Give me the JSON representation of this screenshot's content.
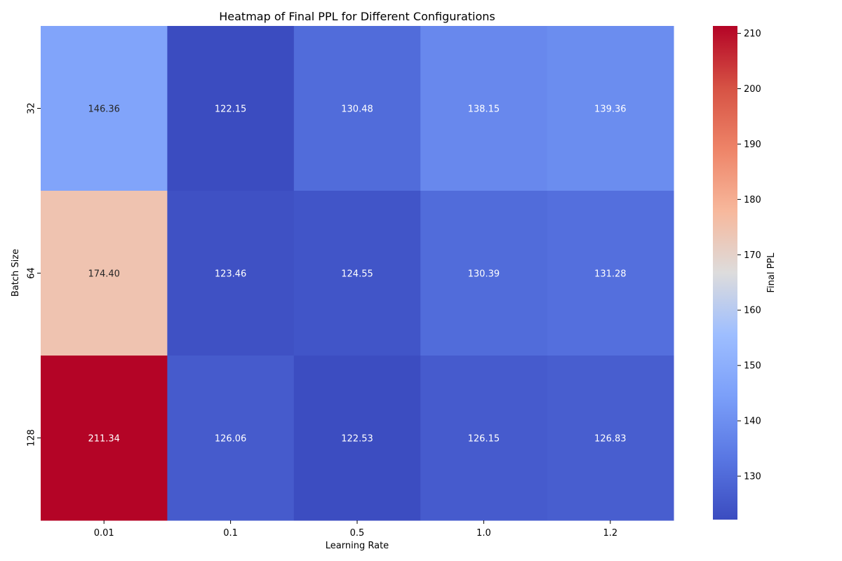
{
  "chart_data": {
    "type": "heatmap",
    "title": "Heatmap of Final PPL for Different Configurations",
    "xlabel": "Learning Rate",
    "ylabel": "Batch Size",
    "x_categories": [
      "0.01",
      "0.1",
      "0.5",
      "1.0",
      "1.2"
    ],
    "y_categories": [
      "32",
      "64",
      "128"
    ],
    "values": [
      [
        146.36,
        122.15,
        130.48,
        138.15,
        139.36
      ],
      [
        174.4,
        123.46,
        124.55,
        130.39,
        131.28
      ],
      [
        211.34,
        126.06,
        122.53,
        126.15,
        126.83
      ]
    ],
    "cell_labels": [
      [
        "146.36",
        "122.15",
        "130.48",
        "138.15",
        "139.36"
      ],
      [
        "174.40",
        "123.46",
        "124.55",
        "130.39",
        "131.28"
      ],
      [
        "211.34",
        "126.06",
        "122.53",
        "126.15",
        "126.83"
      ]
    ],
    "colormap": "coolwarm",
    "colorbar": {
      "label": "Final PPL",
      "range": [
        122.15,
        211.34
      ],
      "ticks": [
        "130",
        "140",
        "150",
        "160",
        "170",
        "180",
        "190",
        "200",
        "210"
      ]
    },
    "grid": false
  }
}
